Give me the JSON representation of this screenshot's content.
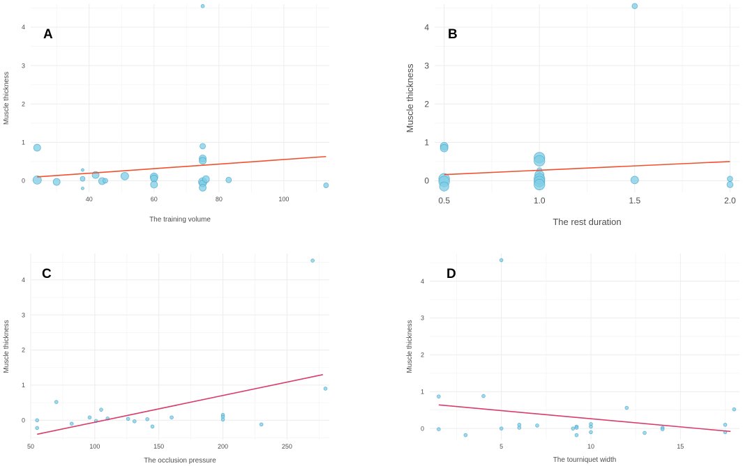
{
  "chart_data": [
    {
      "type": "scatter",
      "panel_label": "A",
      "xlabel": "The training volume",
      "ylabel": "Muscle thickness",
      "xlim": [
        22,
        114
      ],
      "ylim": [
        -0.3,
        4.6
      ],
      "xticks": [
        40,
        60,
        80,
        100
      ],
      "yticks": [
        0,
        1,
        2,
        3,
        4
      ],
      "trend": {
        "x": [
          24,
          113
        ],
        "y": [
          0.1,
          0.63
        ]
      },
      "points": [
        {
          "x": 24,
          "y": 0.86,
          "size": 5
        },
        {
          "x": 24,
          "y": 0.02,
          "size": 6
        },
        {
          "x": 30,
          "y": -0.03,
          "size": 5
        },
        {
          "x": 38,
          "y": 0.28,
          "size": 2
        },
        {
          "x": 38,
          "y": 0.05,
          "size": 3.5
        },
        {
          "x": 38,
          "y": -0.2,
          "size": 2
        },
        {
          "x": 42,
          "y": 0.15,
          "size": 5
        },
        {
          "x": 44,
          "y": -0.01,
          "size": 5
        },
        {
          "x": 45,
          "y": 0.0,
          "size": 3.5
        },
        {
          "x": 51,
          "y": 0.12,
          "size": 5.5
        },
        {
          "x": 60,
          "y": 0.1,
          "size": 5.5
        },
        {
          "x": 60,
          "y": 0.06,
          "size": 5
        },
        {
          "x": 60,
          "y": -0.1,
          "size": 5
        },
        {
          "x": 75,
          "y": 4.55,
          "size": 2.5
        },
        {
          "x": 75,
          "y": 0.9,
          "size": 4
        },
        {
          "x": 75,
          "y": 0.58,
          "size": 5
        },
        {
          "x": 75,
          "y": 0.52,
          "size": 5
        },
        {
          "x": 75,
          "y": -0.03,
          "size": 6
        },
        {
          "x": 75,
          "y": -0.07,
          "size": 5
        },
        {
          "x": 75,
          "y": -0.18,
          "size": 5
        },
        {
          "x": 76,
          "y": 0.04,
          "size": 5
        },
        {
          "x": 83,
          "y": 0.02,
          "size": 4
        },
        {
          "x": 113,
          "y": -0.12,
          "size": 3.5
        }
      ]
    },
    {
      "type": "scatter",
      "panel_label": "B",
      "xlabel": "The rest duration",
      "ylabel": "Muscle thickness",
      "xlim": [
        0.45,
        2.05
      ],
      "ylim": [
        -0.3,
        4.6
      ],
      "xticks": [
        0.5,
        1.0,
        1.5,
        2.0
      ],
      "xtick_labels": [
        "0.5",
        "1.0",
        "1.5",
        "2.0"
      ],
      "yticks": [
        0,
        1,
        2,
        3,
        4
      ],
      "trend": {
        "x": [
          0.5,
          2.0
        ],
        "y": [
          0.16,
          0.5
        ]
      },
      "points": [
        {
          "x": 0.5,
          "y": 0.9,
          "size": 5
        },
        {
          "x": 0.5,
          "y": 0.85,
          "size": 5
        },
        {
          "x": 0.5,
          "y": 0.05,
          "size": 7
        },
        {
          "x": 0.5,
          "y": -0.02,
          "size": 7
        },
        {
          "x": 0.5,
          "y": -0.15,
          "size": 6
        },
        {
          "x": 1.0,
          "y": 0.6,
          "size": 7
        },
        {
          "x": 1.0,
          "y": 0.52,
          "size": 7
        },
        {
          "x": 1.0,
          "y": 0.28,
          "size": 3
        },
        {
          "x": 1.0,
          "y": 0.15,
          "size": 6
        },
        {
          "x": 1.0,
          "y": 0.05,
          "size": 7
        },
        {
          "x": 1.0,
          "y": -0.02,
          "size": 7
        },
        {
          "x": 1.0,
          "y": -0.1,
          "size": 7
        },
        {
          "x": 1.5,
          "y": 4.55,
          "size": 3.5
        },
        {
          "x": 1.5,
          "y": 0.02,
          "size": 5
        },
        {
          "x": 2.0,
          "y": 0.05,
          "size": 3.5
        },
        {
          "x": 2.0,
          "y": -0.1,
          "size": 4
        }
      ]
    },
    {
      "type": "scatter",
      "panel_label": "C",
      "xlabel": "The occlusion pressure",
      "ylabel": "Muscle thickness",
      "xlim": [
        50,
        283
      ],
      "ylim": [
        -0.55,
        4.75
      ],
      "xticks": [
        50,
        100,
        150,
        200,
        250
      ],
      "yticks": [
        0,
        1,
        2,
        3,
        4
      ],
      "trend": {
        "x": [
          55,
          278
        ],
        "y": [
          -0.4,
          1.3
        ]
      },
      "points": [
        {
          "x": 55,
          "y": 0.0
        },
        {
          "x": 55,
          "y": -0.22
        },
        {
          "x": 70,
          "y": 0.52
        },
        {
          "x": 82,
          "y": -0.1
        },
        {
          "x": 96,
          "y": 0.08
        },
        {
          "x": 101,
          "y": -0.02
        },
        {
          "x": 105,
          "y": 0.3
        },
        {
          "x": 110,
          "y": 0.05
        },
        {
          "x": 126,
          "y": 0.04
        },
        {
          "x": 131,
          "y": -0.03
        },
        {
          "x": 141,
          "y": 0.03
        },
        {
          "x": 145,
          "y": -0.18
        },
        {
          "x": 160,
          "y": 0.08
        },
        {
          "x": 200,
          "y": 0.15
        },
        {
          "x": 200,
          "y": 0.1
        },
        {
          "x": 200,
          "y": 0.02
        },
        {
          "x": 230,
          "y": -0.12
        },
        {
          "x": 270,
          "y": 4.55
        },
        {
          "x": 280,
          "y": 0.9
        }
      ]
    },
    {
      "type": "scatter",
      "panel_label": "D",
      "xlabel": "The tourniquet width",
      "ylabel": "Muscle thickness",
      "xlim": [
        1.0,
        18.3
      ],
      "ylim": [
        -0.3,
        4.75
      ],
      "xticks": [
        5,
        10,
        15
      ],
      "yticks": [
        0,
        1,
        2,
        3,
        4
      ],
      "trend": {
        "x": [
          1.5,
          17.8
        ],
        "y": [
          0.64,
          -0.08
        ]
      },
      "points": [
        {
          "x": 1.5,
          "y": 0.87
        },
        {
          "x": 1.5,
          "y": -0.02
        },
        {
          "x": 3,
          "y": -0.18
        },
        {
          "x": 4,
          "y": 0.88
        },
        {
          "x": 5,
          "y": 4.57
        },
        {
          "x": 5,
          "y": 0.0
        },
        {
          "x": 6,
          "y": 0.1
        },
        {
          "x": 6,
          "y": 0.02
        },
        {
          "x": 7,
          "y": 0.08
        },
        {
          "x": 9,
          "y": 0.0
        },
        {
          "x": 9.2,
          "y": 0.05
        },
        {
          "x": 9.2,
          "y": 0.02
        },
        {
          "x": 9.2,
          "y": -0.18
        },
        {
          "x": 10,
          "y": 0.12
        },
        {
          "x": 10,
          "y": 0.05
        },
        {
          "x": 10,
          "y": -0.1
        },
        {
          "x": 12,
          "y": 0.56
        },
        {
          "x": 13,
          "y": -0.12
        },
        {
          "x": 14,
          "y": 0.02
        },
        {
          "x": 14,
          "y": -0.02
        },
        {
          "x": 17.5,
          "y": 0.1
        },
        {
          "x": 17.5,
          "y": -0.1
        },
        {
          "x": 18,
          "y": 0.52
        }
      ]
    }
  ],
  "colors": {
    "point_fill": "#7fcde6",
    "point_stroke": "#4ba8cc",
    "trend_top": "#f0502b",
    "trend_bottom": "#d93b6a",
    "grid": "#ececec",
    "tick_text": "#4d4d4d"
  }
}
